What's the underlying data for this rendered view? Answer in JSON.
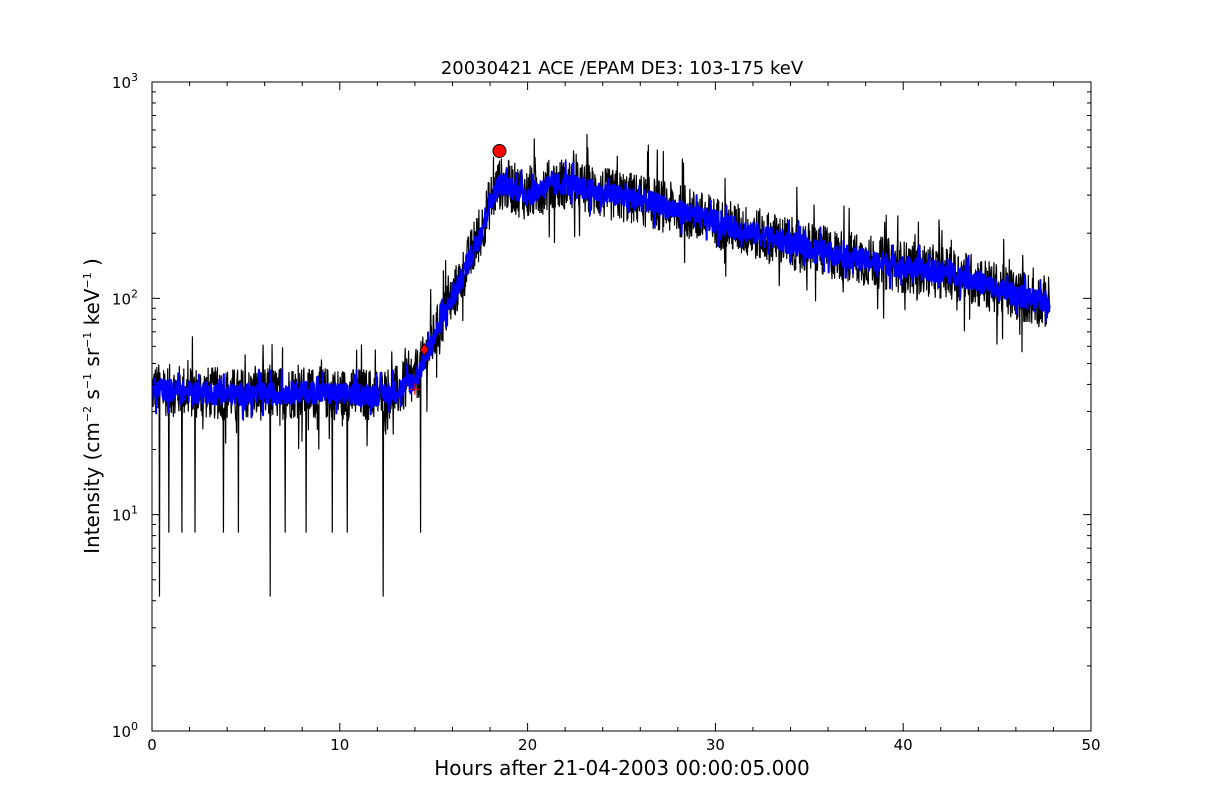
{
  "chart_data": {
    "type": "line",
    "title": "20030421 ACE /EPAM DE3: 103-175 keV",
    "xlabel": "Hours after 21-04-2003 00:00:05.000",
    "ylabel": {
      "parts": [
        "Intensity (cm",
        "−2",
        " s",
        "−1",
        " sr",
        "−1",
        " keV",
        "−1",
        " )"
      ]
    },
    "xlim": [
      0,
      50
    ],
    "ylim": [
      1,
      1000
    ],
    "yscale": "log",
    "xticks": [
      "0",
      "10",
      "20",
      "30",
      "40",
      "50"
    ],
    "yticks": [
      {
        "base": "10",
        "exp": "0",
        "value": 1
      },
      {
        "base": "10",
        "exp": "1",
        "value": 10
      },
      {
        "base": "10",
        "exp": "2",
        "value": 100
      },
      {
        "base": "10",
        "exp": "3",
        "value": 1000
      }
    ],
    "grid": false,
    "series": [
      {
        "role": "raw",
        "color": "#000000",
        "x": [
          0.0,
          2.0,
          4.0,
          6.0,
          8.0,
          10.0,
          12.0,
          13.0,
          14.0,
          14.5,
          15.0,
          15.5,
          16.0,
          16.5,
          17.0,
          17.5,
          18.0,
          18.5,
          19.0,
          20.0,
          21.0,
          22.0,
          23.0,
          24.0,
          25.0,
          26.0,
          27.0,
          28.0,
          30.0,
          32.0,
          34.0,
          36.0,
          38.0,
          40.0,
          42.0,
          43.0,
          44.0,
          45.0,
          46.0,
          47.0,
          47.8
        ],
        "y": [
          38,
          37,
          36,
          36,
          37,
          36,
          36,
          37,
          42,
          52,
          65,
          82,
          100,
          125,
          160,
          200,
          280,
          340,
          330,
          300,
          330,
          340,
          320,
          305,
          295,
          285,
          270,
          255,
          225,
          200,
          180,
          162,
          150,
          140,
          132,
          128,
          120,
          110,
          104,
          98,
          96
        ],
        "noise": 0.28,
        "spikes": [
          {
            "x": 0.4,
            "y": 4.2
          },
          {
            "x": 6.3,
            "y": 4.2
          },
          {
            "x": 12.3,
            "y": 4.2
          },
          {
            "x": 0.9,
            "y": 8.3
          },
          {
            "x": 1.6,
            "y": 8.3
          },
          {
            "x": 2.3,
            "y": 8.3
          },
          {
            "x": 3.8,
            "y": 8.3
          },
          {
            "x": 4.6,
            "y": 8.3
          },
          {
            "x": 7.1,
            "y": 8.3
          },
          {
            "x": 8.2,
            "y": 8.3
          },
          {
            "x": 9.6,
            "y": 8.3
          },
          {
            "x": 10.4,
            "y": 8.3
          },
          {
            "x": 14.3,
            "y": 8.3
          }
        ]
      },
      {
        "role": "smoothed",
        "color": "#0000ff",
        "x": [
          0.0,
          2.0,
          4.0,
          6.0,
          8.0,
          10.0,
          12.0,
          13.0,
          14.0,
          14.5,
          15.0,
          15.5,
          16.0,
          16.5,
          17.0,
          17.5,
          18.0,
          18.5,
          19.0,
          20.0,
          21.0,
          22.0,
          23.0,
          24.0,
          25.0,
          26.0,
          27.0,
          28.0,
          30.0,
          32.0,
          34.0,
          36.0,
          38.0,
          40.0,
          42.0,
          43.0,
          44.0,
          45.0,
          46.0,
          47.0,
          47.8
        ],
        "y": [
          38,
          37,
          36,
          36,
          37,
          36,
          36,
          37,
          42,
          52,
          65,
          82,
          100,
          125,
          160,
          200,
          280,
          340,
          330,
          300,
          330,
          340,
          320,
          305,
          295,
          285,
          270,
          255,
          225,
          200,
          180,
          162,
          150,
          140,
          132,
          128,
          120,
          110,
          104,
          98,
          96
        ],
        "noise": 0.12
      }
    ],
    "markers": [
      {
        "kind": "circle",
        "x": 18.5,
        "y": 480,
        "color": "#ff0000"
      },
      {
        "kind": "diamond",
        "x": 14.5,
        "y": 58,
        "color": "#ff0000"
      },
      {
        "kind": "plus",
        "x": 14.0,
        "y": 38,
        "color": "#ff0000"
      }
    ]
  }
}
